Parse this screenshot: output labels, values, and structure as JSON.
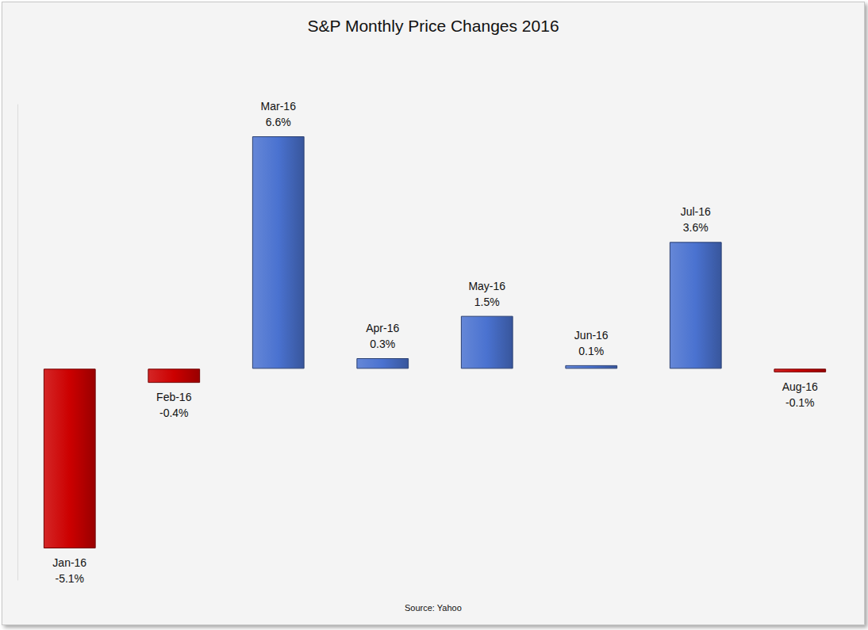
{
  "chart_data": {
    "type": "bar",
    "title": "S&P Monthly Price Changes 2016",
    "source": "Source: Yahoo",
    "categories": [
      "Jan-16",
      "Feb-16",
      "Mar-16",
      "Apr-16",
      "May-16",
      "Jun-16",
      "Jul-16",
      "Aug-16"
    ],
    "values": [
      -5.1,
      -0.4,
      6.6,
      0.3,
      1.5,
      0.1,
      3.6,
      -0.1
    ],
    "value_labels": [
      "-5.1%",
      "-0.4%",
      "6.6%",
      "0.3%",
      "1.5%",
      "0.1%",
      "3.6%",
      "-0.1%"
    ],
    "colors": [
      "#cc0000",
      "#cc0000",
      "#4a72d0",
      "#4a72d0",
      "#4a72d0",
      "#4a72d0",
      "#4a72d0",
      "#cc0000"
    ],
    "ylim": [
      -6,
      7.5
    ],
    "grid": false,
    "data_labels": true,
    "tick_labels": false
  }
}
